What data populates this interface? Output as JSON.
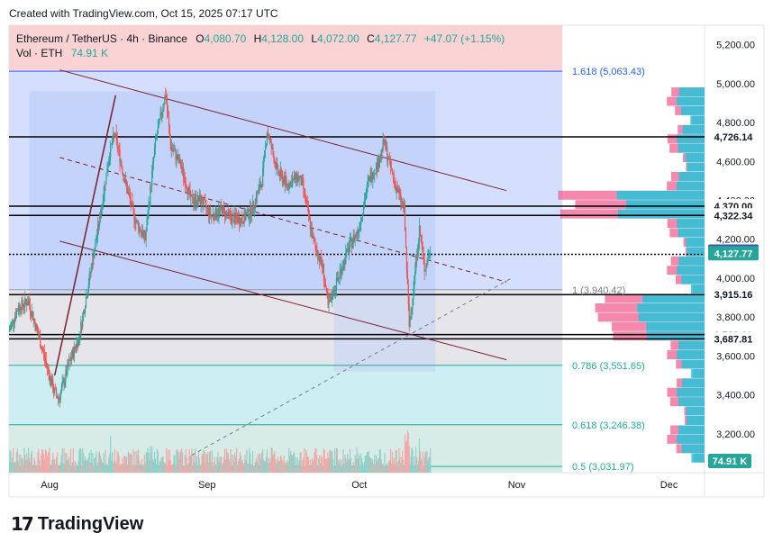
{
  "header": {
    "created_text": "Created with TradingView.com, Oct 15, 2025 07:17 UTC"
  },
  "legend": {
    "symbol": "Ethereum / TetherUS · 4h · Binance",
    "open_label": "O",
    "open": "4,080.70",
    "high_label": "H",
    "high": "4,128.00",
    "low_label": "L",
    "low": "4,072.00",
    "close_label": "C",
    "close": "4,127.77",
    "change": "+47.07 (+1.15%)",
    "vol_label": "Vol · ETH",
    "vol_value": "74.91 K"
  },
  "brand": {
    "mark": "17",
    "name": "TradingView"
  },
  "colors": {
    "up": "#26a69a",
    "down": "#ef5350",
    "fib_blue": "#2962ff",
    "fib_teal": "#22ab94",
    "channel": "#7b1f2e",
    "axis_text": "#131722"
  },
  "chart_data": {
    "type": "candlestick",
    "symbol": "ETH/USDT",
    "interval": "4h",
    "exchange": "Binance",
    "ylim": [
      3000,
      5300
    ],
    "y_ticks": [
      3200,
      3400,
      3600,
      3800,
      4000,
      4200,
      4400,
      4600,
      4800,
      5000,
      5200
    ],
    "y_tick_labels": [
      "3,200.00",
      "3,400.00",
      "3,600.00",
      "3,800.00",
      "4,000.00",
      "4,200.00",
      "4,400.00",
      "4,600.00",
      "4,800.00",
      "5,000.00",
      "5,200.00"
    ],
    "x_labels": [
      "Aug",
      "Sep",
      "Oct",
      "Nov",
      "Dec"
    ],
    "x_label_dates": [
      "2025-08-01",
      "2025-09-01",
      "2025-10-01",
      "2025-11-01",
      "2025-12-01"
    ],
    "x_range": [
      "2025-07-24",
      "2025-12-08"
    ],
    "price_path": [
      [
        "2025-07-24",
        3720
      ],
      [
        "2025-07-26",
        3850
      ],
      [
        "2025-07-28",
        3880
      ],
      [
        "2025-07-30",
        3700
      ],
      [
        "2025-08-02",
        3420
      ],
      [
        "2025-08-03",
        3380
      ],
      [
        "2025-08-05",
        3560
      ],
      [
        "2025-08-07",
        3700
      ],
      [
        "2025-08-09",
        4000
      ],
      [
        "2025-08-11",
        4300
      ],
      [
        "2025-08-13",
        4650
      ],
      [
        "2025-08-14",
        4740
      ],
      [
        "2025-08-16",
        4500
      ],
      [
        "2025-08-18",
        4300
      ],
      [
        "2025-08-20",
        4200
      ],
      [
        "2025-08-22",
        4700
      ],
      [
        "2025-08-24",
        4950
      ],
      [
        "2025-08-25",
        4680
      ],
      [
        "2025-08-27",
        4580
      ],
      [
        "2025-08-29",
        4400
      ],
      [
        "2025-08-31",
        4400
      ],
      [
        "2025-09-02",
        4320
      ],
      [
        "2025-09-04",
        4350
      ],
      [
        "2025-09-06",
        4310
      ],
      [
        "2025-09-08",
        4300
      ],
      [
        "2025-09-10",
        4350
      ],
      [
        "2025-09-12",
        4500
      ],
      [
        "2025-09-13",
        4760
      ],
      [
        "2025-09-15",
        4550
      ],
      [
        "2025-09-17",
        4480
      ],
      [
        "2025-09-19",
        4520
      ],
      [
        "2025-09-20",
        4480
      ],
      [
        "2025-09-22",
        4200
      ],
      [
        "2025-09-24",
        4050
      ],
      [
        "2025-09-25",
        3850
      ],
      [
        "2025-09-27",
        4000
      ],
      [
        "2025-09-29",
        4150
      ],
      [
        "2025-10-01",
        4250
      ],
      [
        "2025-10-03",
        4500
      ],
      [
        "2025-10-05",
        4600
      ],
      [
        "2025-10-06",
        4700
      ],
      [
        "2025-10-08",
        4500
      ],
      [
        "2025-10-10",
        4350
      ],
      [
        "2025-10-11",
        3750
      ],
      [
        "2025-10-12",
        4000
      ],
      [
        "2025-10-13",
        4250
      ],
      [
        "2025-10-14",
        4050
      ],
      [
        "2025-10-15",
        4127.77
      ]
    ],
    "hlines": [
      {
        "value": 4726.14,
        "label": "4,726.14"
      },
      {
        "value": 4370.0,
        "label": "4,370.00"
      },
      {
        "value": 4322.34,
        "label": "4,322.34"
      },
      {
        "value": 4122.5,
        "label": "4,122.50"
      },
      {
        "value": 3915.16,
        "label": "3,915.16"
      },
      {
        "value": 3710.0,
        "label": "3,710.00"
      },
      {
        "value": 3687.81,
        "label": "3,687.81"
      }
    ],
    "last_price": {
      "value": 4127.77,
      "label": "4,127.77"
    },
    "marker_price": {
      "value": 4136.1,
      "label": "4,136.10"
    },
    "volume_label": "74.91 K",
    "fib_levels": [
      {
        "ratio": "1.618",
        "value": 5063.43,
        "label": "1.618 (5,063.43)"
      },
      {
        "ratio": "1",
        "value": 3940.42,
        "label": "1 (3,940.42)"
      },
      {
        "ratio": "0.786",
        "value": 3551.65,
        "label": "0.786 (3,551.65)"
      },
      {
        "ratio": "0.618",
        "value": 3246.38,
        "label": "0.618 (3,246.38)"
      },
      {
        "ratio": "0.5",
        "value": 3031.97,
        "label": "0.5 (3,031.97)"
      }
    ],
    "channel": {
      "upper": [
        [
          "2025-08-03",
          5070
        ],
        [
          "2025-10-30",
          4450
        ]
      ],
      "mid": [
        [
          "2025-08-03",
          4620
        ],
        [
          "2025-10-30",
          3980
        ]
      ],
      "lower": [
        [
          "2025-08-03",
          4190
        ],
        [
          "2025-10-30",
          3580
        ]
      ]
    },
    "trend_dashed": [
      [
        "2025-08-29",
        3090
      ],
      [
        "2025-10-31",
        4000
      ]
    ],
    "impulse_line": [
      [
        "2025-08-02",
        3500
      ],
      [
        "2025-08-14",
        4940
      ]
    ],
    "grid": false,
    "legend_position": "top-left"
  }
}
